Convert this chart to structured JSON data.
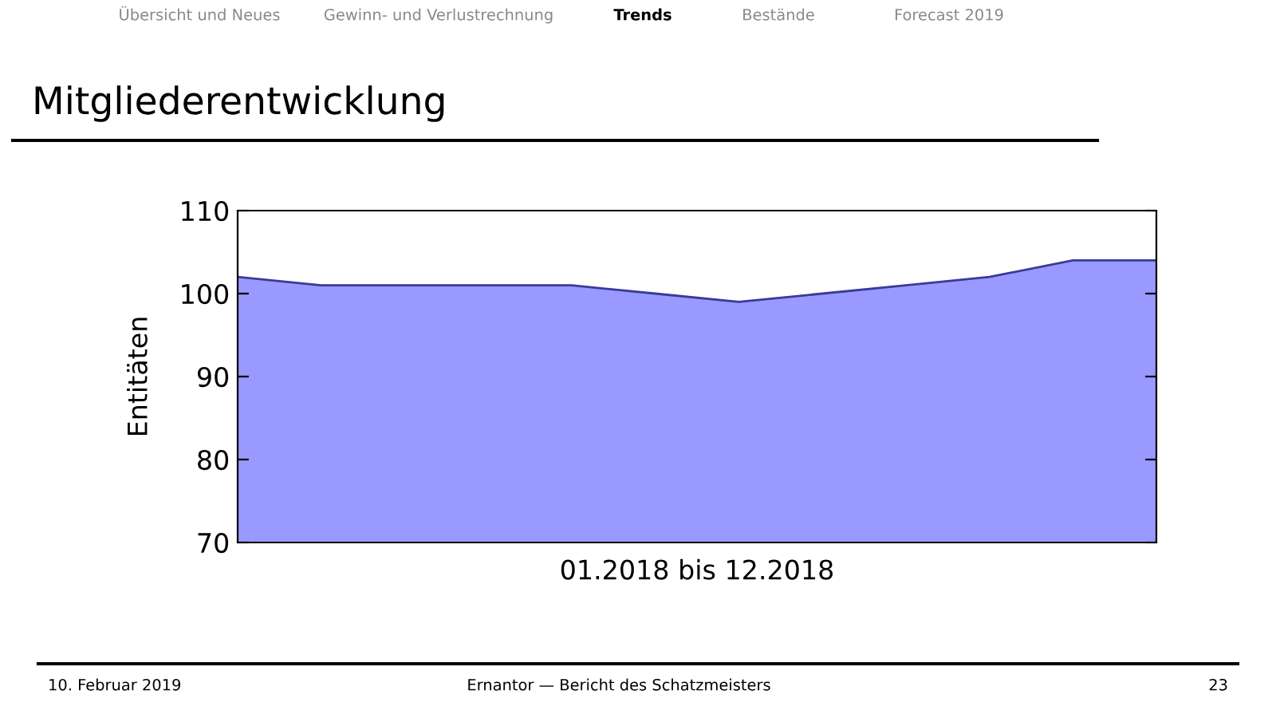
{
  "chart_data": {
    "type": "area",
    "title": "Mitgliederentwicklung",
    "categories": [
      null,
      null,
      null,
      null,
      null,
      null,
      null,
      null,
      null,
      null,
      null,
      null
    ],
    "series": [
      {
        "color": "#9999ff",
        "values": [
          102,
          101,
          101,
          101,
          101,
          100,
          99,
          100,
          101,
          102,
          104,
          104
        ]
      }
    ],
    "xlabel": "01.2018 bis 12.2018",
    "ylabel": "Entitäten",
    "ylim": [
      70,
      110
    ],
    "yticks": [
      70,
      80,
      90,
      100,
      110
    ],
    "grid": false,
    "annotations": [
      "Übersicht und Neues",
      "Gewinn- und Verlustrechnung",
      "Trends",
      "Bestände",
      "Forecast 2019",
      "10. Februar 2019",
      "Ernantor — Bericht des Schatzmeisters",
      "23"
    ]
  }
}
